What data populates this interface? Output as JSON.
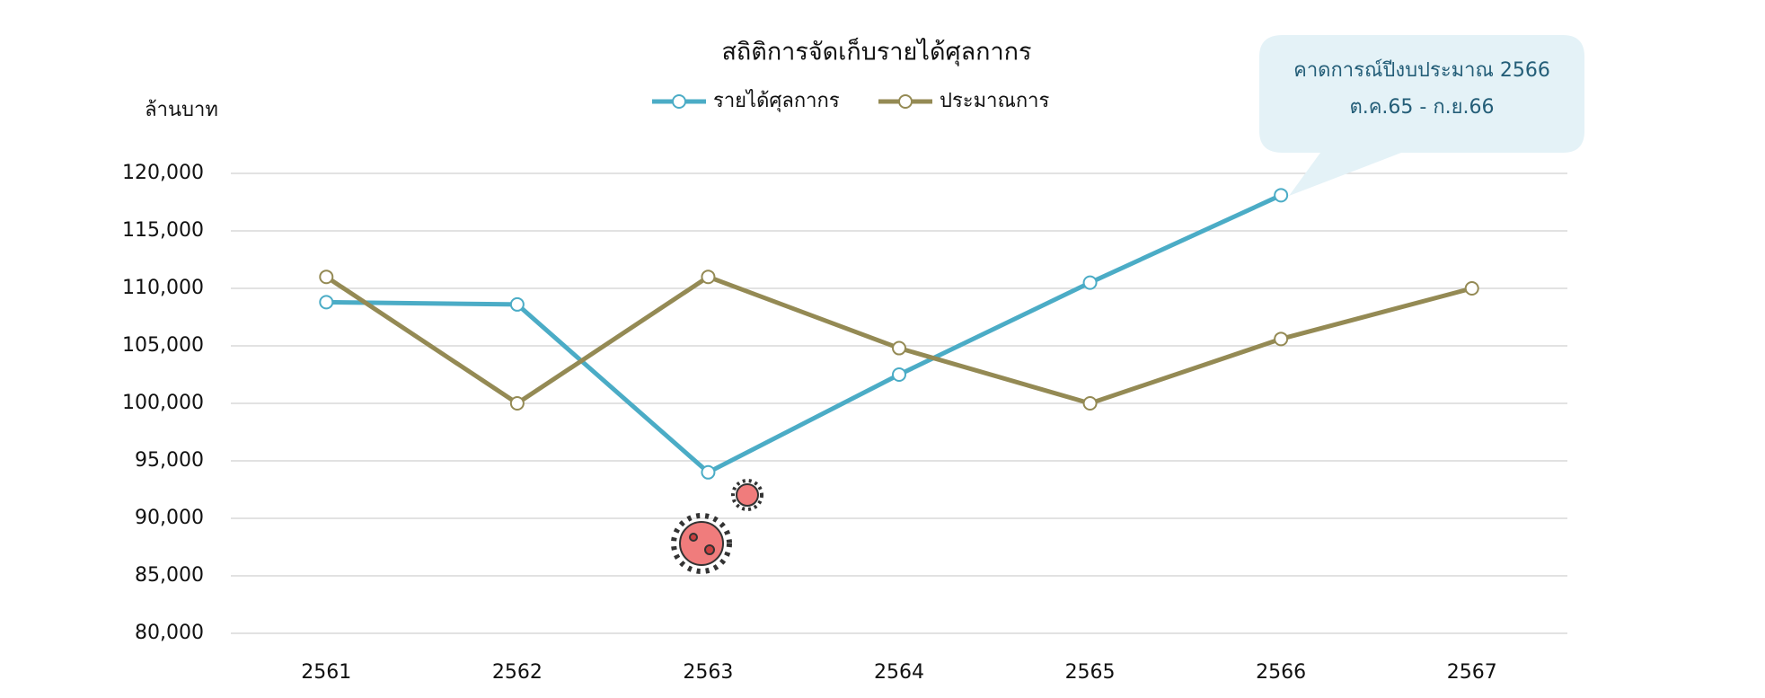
{
  "chart_data": {
    "type": "line",
    "title": "สถิติการจัดเก็บรายได้ศุลกากร",
    "y_label": "ล้านบาท",
    "annotation": [
      "คาดการณ์ปีงบประมาณ 2566",
      "ต.ค.65 - ก.ย.66"
    ],
    "categories": [
      "2561",
      "2562",
      "2563",
      "2564",
      "2565",
      "2566",
      "2567"
    ],
    "series": [
      {
        "name": "รายได้ศุลกากร",
        "color": "#4bacc6",
        "values": [
          108800,
          108600,
          94000,
          102500,
          110500,
          118100,
          null
        ]
      },
      {
        "name": "ประมาณการ",
        "color": "#948a54",
        "values": [
          111000,
          100000,
          111000,
          104800,
          100000,
          105600,
          110000
        ]
      }
    ],
    "ylim": [
      80000,
      120000
    ],
    "yticks": [
      {
        "value": 80000,
        "label": "80,000"
      },
      {
        "value": 85000,
        "label": "85,000"
      },
      {
        "value": 90000,
        "label": "90,000"
      },
      {
        "value": 95000,
        "label": "95,000"
      },
      {
        "value": 100000,
        "label": "100,000"
      },
      {
        "value": 105000,
        "label": "105,000"
      },
      {
        "value": 110000,
        "label": "110,000"
      },
      {
        "value": 115000,
        "label": "115,000"
      },
      {
        "value": 120000,
        "label": "120,000"
      }
    ],
    "grid": true
  }
}
